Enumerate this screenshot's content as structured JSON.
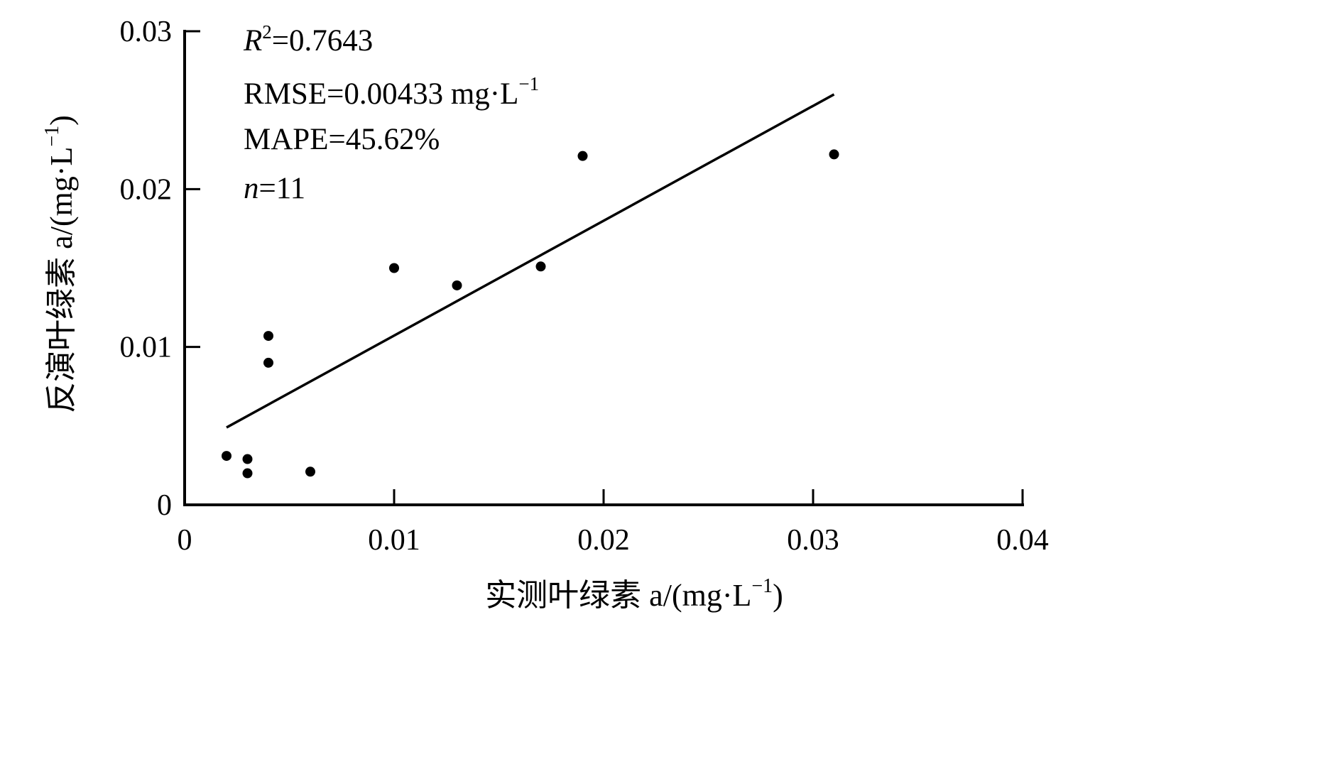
{
  "chart_data": {
    "type": "scatter",
    "xlabel": "实测叶绿素 a/(mg·L",
    "ylabel": "反演叶绿素 a/(mg·L",
    "label_unit_exponent": "−1",
    "label_close": ")",
    "xlim": [
      0,
      0.04
    ],
    "ylim": [
      0,
      0.03
    ],
    "xticks": [
      0,
      0.01,
      0.02,
      0.03,
      0.04
    ],
    "yticks": [
      0,
      0.01,
      0.02,
      0.03
    ],
    "xtick_labels": [
      "0",
      "0.01",
      "0.02",
      "0.03",
      "0.04"
    ],
    "ytick_labels": [
      "0",
      "0.01",
      "0.02",
      "0.03"
    ],
    "points": [
      {
        "x": 0.002,
        "y": 0.0031
      },
      {
        "x": 0.003,
        "y": 0.0029
      },
      {
        "x": 0.003,
        "y": 0.002
      },
      {
        "x": 0.004,
        "y": 0.0107
      },
      {
        "x": 0.004,
        "y": 0.009
      },
      {
        "x": 0.006,
        "y": 0.0021
      },
      {
        "x": 0.01,
        "y": 0.015
      },
      {
        "x": 0.013,
        "y": 0.0139
      },
      {
        "x": 0.017,
        "y": 0.0151
      },
      {
        "x": 0.019,
        "y": 0.0221
      },
      {
        "x": 0.031,
        "y": 0.0222
      }
    ],
    "fit_line": {
      "x": [
        0.002,
        0.031
      ],
      "y": [
        0.0049,
        0.026
      ]
    },
    "grid": false,
    "annotations": {
      "r2_symbol": "R",
      "r2_exponent": "2",
      "r2_value": "=0.7643",
      "rmse": "RMSE=0.00433 mg·L",
      "rmse_exponent": "−1",
      "mape": "MAPE=45.62%",
      "n_symbol": "n",
      "n_value": "=11"
    }
  }
}
